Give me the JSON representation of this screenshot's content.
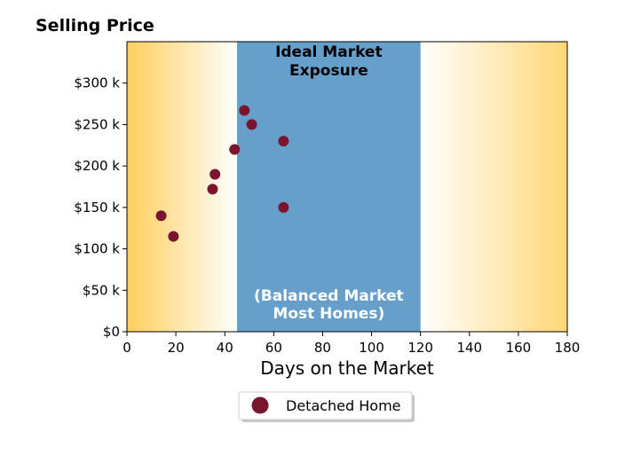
{
  "chart_data": {
    "type": "scatter",
    "title": "Selling Price",
    "xlabel": "Days on the Market",
    "ylabel": "",
    "xlim": [
      0,
      180
    ],
    "ylim": [
      0,
      350000
    ],
    "x_ticks": [
      0,
      20,
      40,
      60,
      80,
      100,
      120,
      140,
      160,
      180
    ],
    "x_tick_labels": [
      "0",
      "20",
      "40",
      "60",
      "80",
      "100",
      "120",
      "140",
      "160",
      "180"
    ],
    "y_ticks": [
      0,
      50000,
      100000,
      150000,
      200000,
      250000,
      300000
    ],
    "y_tick_labels": [
      "$0",
      "$50 k",
      "$100 k",
      "$150 k",
      "$200 k",
      "$250 k",
      "$300 k"
    ],
    "grid": false,
    "legend_position": "bottom-center",
    "background_gradient_color": "#ffcc55",
    "band": {
      "x_start": 45,
      "x_end": 120,
      "color": "#679fcb",
      "top_label_lines": [
        "Ideal Market",
        "Exposure"
      ],
      "top_label_color": "#000000",
      "bottom_label_lines": [
        "(Balanced Market",
        "Most Homes)"
      ],
      "bottom_label_color": "#ffffff"
    },
    "series": [
      {
        "name": "Detached Home",
        "color": "#7a1530",
        "points": [
          {
            "x": 14,
            "y": 140000
          },
          {
            "x": 19,
            "y": 115000
          },
          {
            "x": 35,
            "y": 172000
          },
          {
            "x": 36,
            "y": 190000
          },
          {
            "x": 44,
            "y": 220000
          },
          {
            "x": 48,
            "y": 267000
          },
          {
            "x": 51,
            "y": 250000
          },
          {
            "x": 64,
            "y": 230000
          },
          {
            "x": 64,
            "y": 150000
          }
        ]
      }
    ]
  }
}
